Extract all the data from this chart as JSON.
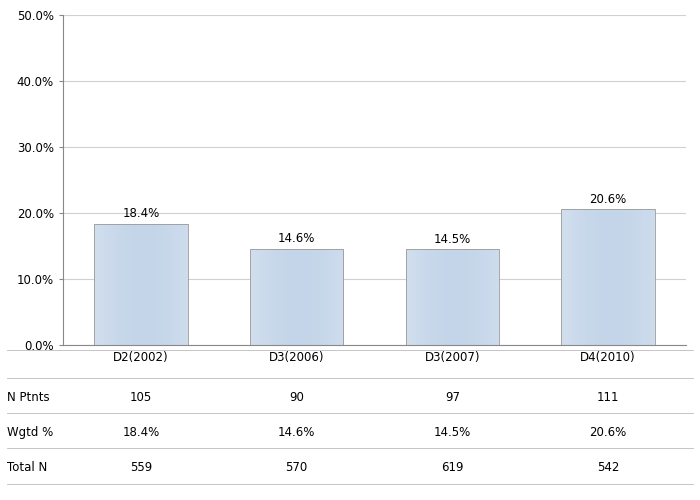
{
  "categories": [
    "D2(2002)",
    "D3(2006)",
    "D3(2007)",
    "D4(2010)"
  ],
  "values": [
    18.4,
    14.6,
    14.5,
    20.6
  ],
  "bar_labels": [
    "18.4%",
    "14.6%",
    "14.5%",
    "20.6%"
  ],
  "n_ptnts": [
    "105",
    "90",
    "97",
    "111"
  ],
  "wgtd_pct": [
    "18.4%",
    "14.6%",
    "14.5%",
    "20.6%"
  ],
  "total_n": [
    "559",
    "570",
    "619",
    "542"
  ],
  "ylim": [
    0,
    50
  ],
  "yticks": [
    0,
    10,
    20,
    30,
    40,
    50
  ],
  "ytick_labels": [
    "0.0%",
    "10.0%",
    "20.0%",
    "30.0%",
    "40.0%",
    "50.0%"
  ],
  "background_color": "#ffffff",
  "plot_bg_color": "#ffffff",
  "grid_color": "#d0d0d0",
  "text_color": "#000000",
  "row_labels": [
    "N Ptnts",
    "Wgtd %",
    "Total N"
  ],
  "label_fontsize": 8.5,
  "tick_fontsize": 8.5,
  "table_fontsize": 8.5,
  "bar_width": 0.6
}
